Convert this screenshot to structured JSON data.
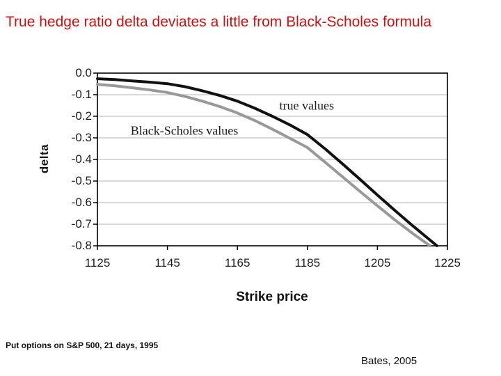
{
  "title": {
    "text": "True hedge ratio delta deviates a little from Black-Scholes formula",
    "color": "#cc1111"
  },
  "chart_data": {
    "type": "line",
    "title": "",
    "xlabel": "Strike price",
    "ylabel": "delta",
    "xlim": [
      1125,
      1225
    ],
    "ylim": [
      -0.8,
      0.0
    ],
    "x_ticks": [
      1125,
      1145,
      1165,
      1185,
      1205,
      1225
    ],
    "y_ticks": [
      0.0,
      -0.1,
      -0.2,
      -0.3,
      -0.4,
      -0.5,
      -0.6,
      -0.7,
      -0.8
    ],
    "y_tick_labels": [
      "0.0",
      "-0.1",
      "-0.2",
      "-0.3",
      "-0.4",
      "-0.5",
      "-0.6",
      "-0.7",
      "-0.8"
    ],
    "grid": "horizontal",
    "grid_color": "#c4c4c4",
    "frame_color": "#000000",
    "legend_position": "annotations-inside-plot",
    "series": [
      {
        "name": "true values",
        "color": "#111111",
        "x": [
          1125,
          1130,
          1135,
          1140,
          1145,
          1150,
          1155,
          1160,
          1165,
          1170,
          1175,
          1180,
          1185,
          1190,
          1195,
          1200,
          1205,
          1210,
          1215,
          1222
        ],
        "y": [
          -0.026,
          -0.03,
          -0.036,
          -0.042,
          -0.049,
          -0.063,
          -0.082,
          -0.104,
          -0.13,
          -0.163,
          -0.2,
          -0.24,
          -0.285,
          -0.35,
          -0.42,
          -0.492,
          -0.565,
          -0.636,
          -0.706,
          -0.8
        ]
      },
      {
        "name": "Black-Scholes values",
        "color": "#999999",
        "x": [
          1125,
          1130,
          1135,
          1140,
          1145,
          1150,
          1155,
          1160,
          1165,
          1170,
          1175,
          1180,
          1185,
          1190,
          1195,
          1200,
          1205,
          1210,
          1215,
          1220
        ],
        "y": [
          -0.052,
          -0.059,
          -0.068,
          -0.078,
          -0.09,
          -0.108,
          -0.13,
          -0.155,
          -0.185,
          -0.22,
          -0.26,
          -0.302,
          -0.345,
          -0.412,
          -0.48,
          -0.548,
          -0.615,
          -0.68,
          -0.742,
          -0.8
        ]
      }
    ],
    "annotations": [
      {
        "text": "true values",
        "x": 1177,
        "y": -0.152,
        "anchor": "left"
      },
      {
        "text": "Black-Scholes values",
        "x": 1134.5,
        "y": -0.268,
        "anchor": "left"
      }
    ]
  },
  "footer": {
    "left": "Put options on S&P 500, 21 days, 1995",
    "right": "Bates, 2005"
  }
}
